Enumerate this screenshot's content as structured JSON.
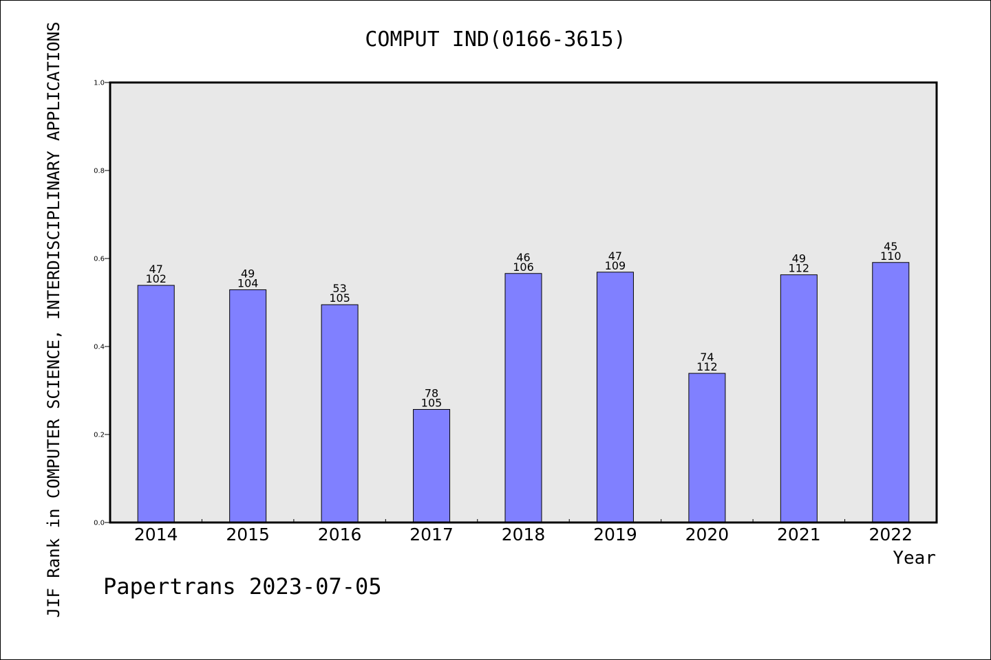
{
  "chart_data": {
    "type": "bar",
    "title": "COMPUT IND(0166-3615)",
    "xlabel": "Year",
    "ylabel": "JIF Rank in COMPUTER SCIENCE, INTERDISCIPLINARY APPLICATIONS",
    "ylim": [
      0,
      1.0
    ],
    "yticks": [
      "0.0",
      "0.2",
      "0.4",
      "0.6",
      "0.8",
      "1.0"
    ],
    "categories": [
      "2014",
      "2015",
      "2016",
      "2017",
      "2018",
      "2019",
      "2020",
      "2021",
      "2022"
    ],
    "values": [
      0.539,
      0.529,
      0.495,
      0.257,
      0.566,
      0.569,
      0.339,
      0.563,
      0.591
    ],
    "rank_labels": [
      "47",
      "49",
      "53",
      "78",
      "46",
      "47",
      "74",
      "49",
      "45"
    ],
    "total_labels": [
      "102",
      "104",
      "105",
      "105",
      "106",
      "109",
      "112",
      "112",
      "110"
    ],
    "grid": false,
    "legend": "none",
    "colors": {
      "bar": "#8080ff",
      "plot_bg": "#e8e8e8",
      "axis": "#000000"
    }
  },
  "footer": "Papertrans 2023-07-05"
}
